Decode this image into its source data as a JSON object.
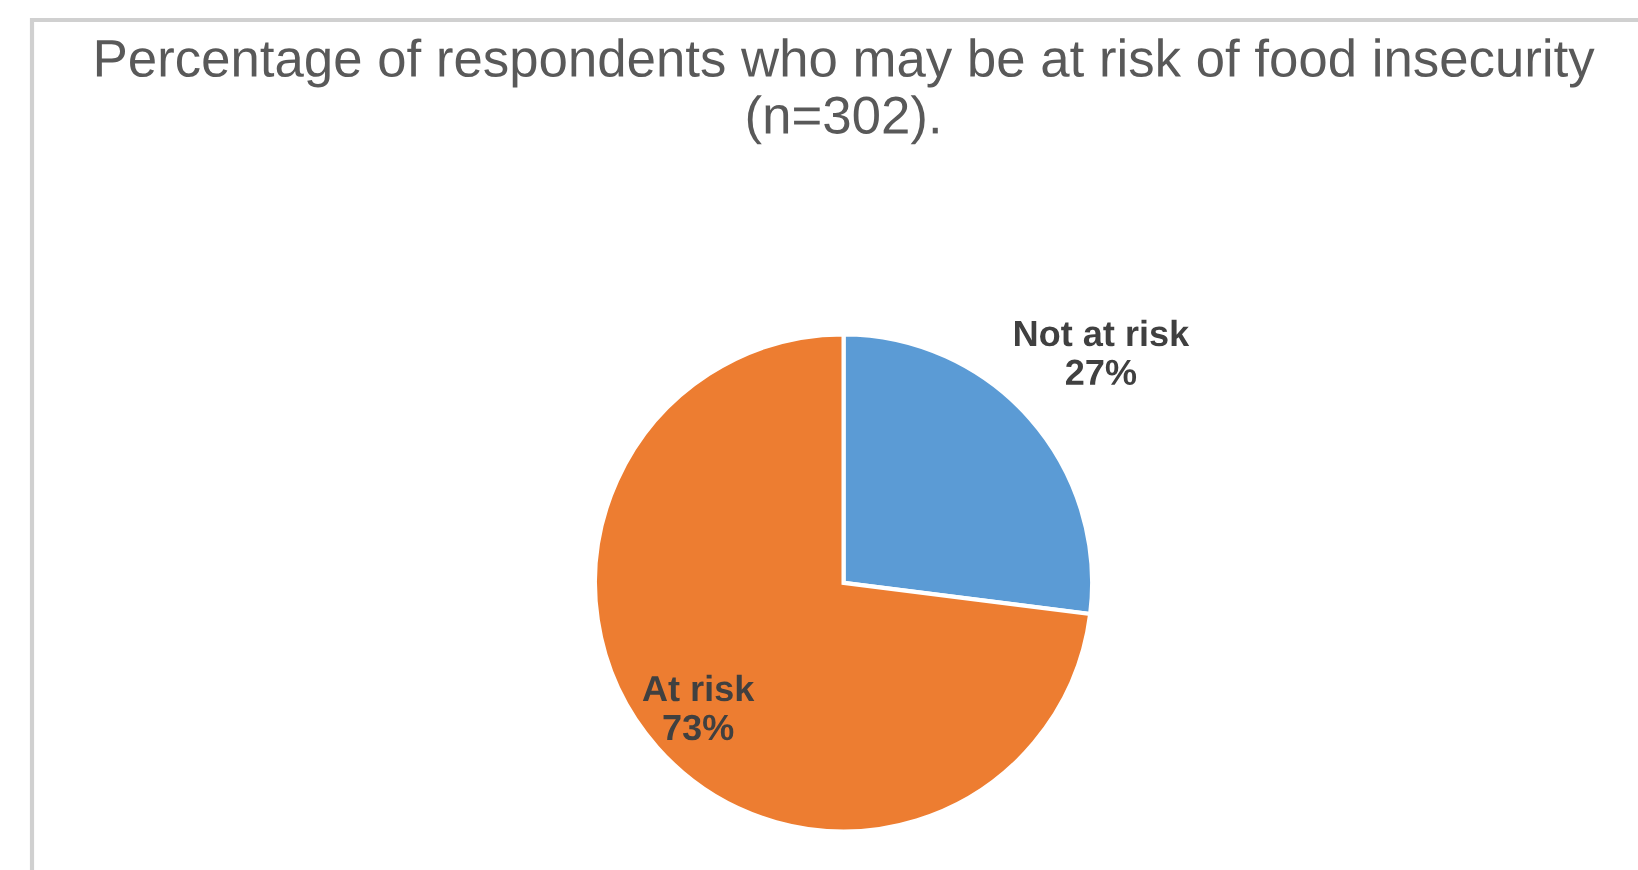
{
  "chart_data": {
    "type": "pie",
    "title": "Percentage of respondents who may be at risk of food insecurity (n=302).",
    "categories": [
      "Not at risk",
      "At risk"
    ],
    "values": [
      27,
      73
    ],
    "colors": [
      "#5b9bd5",
      "#ed7d31"
    ],
    "value_labels": [
      "27%",
      "73%"
    ]
  }
}
